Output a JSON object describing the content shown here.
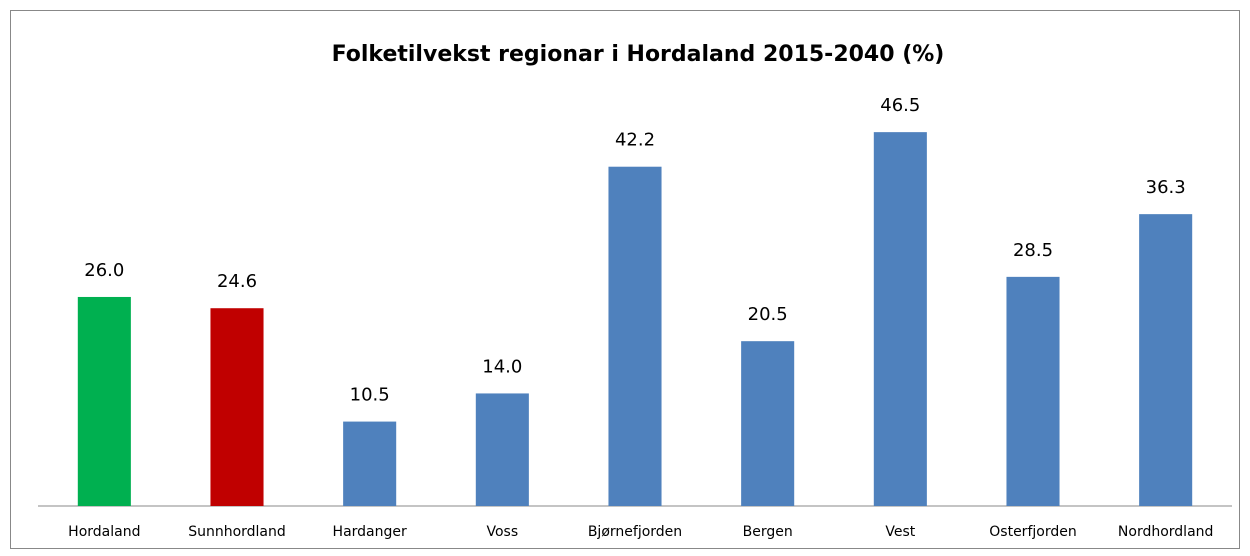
{
  "chart_data": {
    "type": "bar",
    "title": "Folketilvekst regionar i Hordaland 2015-2040 (%)",
    "categories": [
      "Hordaland",
      "Sunnhordland",
      "Hardanger",
      "Voss",
      "Bjørnefjorden",
      "Bergen",
      "Vest",
      "Osterfjorden",
      "Nordhordland"
    ],
    "values": [
      26,
      24.6,
      10.5,
      14,
      42.2,
      20.5,
      46.5,
      28.5,
      36.3
    ],
    "value_labels": [
      "26.0",
      "24.6",
      "10.5",
      "14.0",
      "42.2",
      "20.5",
      "46.5",
      "28.5",
      "36.3"
    ],
    "colors": [
      "#00b050",
      "#c00000",
      "#4f81bd",
      "#4f81bd",
      "#4f81bd",
      "#4f81bd",
      "#4f81bd",
      "#4f81bd",
      "#4f81bd"
    ],
    "ylim": [
      0,
      50
    ]
  }
}
